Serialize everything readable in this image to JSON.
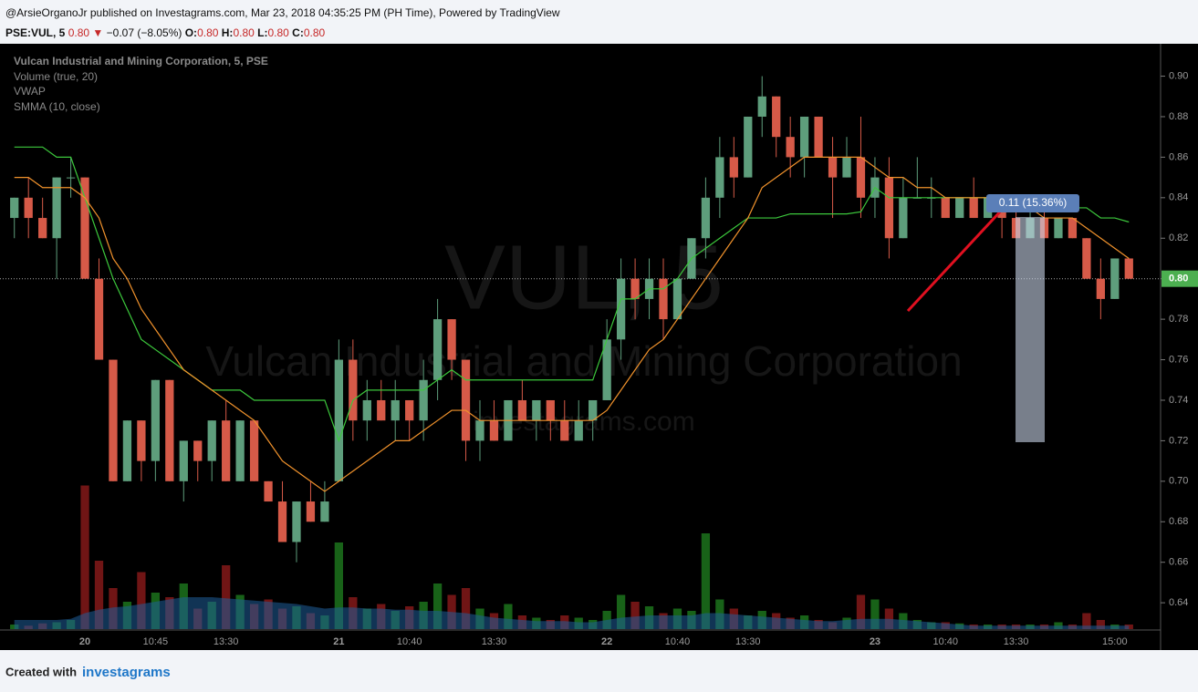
{
  "header": {
    "published": "@ArsieOrganoJr published on Investagrams.com, Mar 23, 2018 04:35:25 PM (PH Time), Powered by TradingView",
    "symbol": "PSE:VUL, 5",
    "last": "0.80",
    "arrow": "▼",
    "change": "−0.07 (−8.05%)",
    "o_label": "O:",
    "o": "0.80",
    "h_label": "H:",
    "h": "0.80",
    "l_label": "L:",
    "l": "0.80",
    "c_label": "C:",
    "c": "0.80"
  },
  "footer": {
    "created": "Created with",
    "brand": "investagrams"
  },
  "chart_data": {
    "type": "candlestick",
    "legend_lines": [
      "Vulcan Industrial and Mining Corporation, 5, PSE",
      "Volume (true, 20)",
      "VWAP",
      "SMMA (10, close)"
    ],
    "watermark": {
      "symbol": "VUL, 5",
      "name": "Vulcan Industrial and Mining Corporation",
      "site": "investagrams.com"
    },
    "measure_label": "0.11 (15.36%)",
    "last_price": {
      "value": 0.8,
      "label": "0.80"
    },
    "categories": [
      null,
      null,
      null,
      null,
      null,
      "20",
      null,
      null,
      null,
      null,
      "10:45",
      null,
      null,
      null,
      null,
      "13:30",
      null,
      null,
      null,
      null,
      null,
      null,
      null,
      "21",
      null,
      null,
      null,
      null,
      "10:40",
      null,
      null,
      null,
      null,
      null,
      "13:30",
      null,
      null,
      null,
      null,
      null,
      null,
      null,
      "22",
      null,
      null,
      null,
      null,
      "10:40",
      null,
      null,
      null,
      null,
      "13:30",
      null,
      null,
      null,
      null,
      null,
      null,
      null,
      null,
      "23",
      null,
      null,
      null,
      null,
      "10:40",
      null,
      null,
      null,
      null,
      "13:30",
      null,
      null,
      null,
      null,
      null,
      null,
      "15:00",
      null
    ],
    "open": [
      0.83,
      0.84,
      0.83,
      0.82,
      0.85,
      0.85,
      0.8,
      0.76,
      0.7,
      0.73,
      0.71,
      0.75,
      0.7,
      0.72,
      0.71,
      0.73,
      0.7,
      0.73,
      0.7,
      0.69,
      0.67,
      0.69,
      0.68,
      0.7,
      0.76,
      0.73,
      0.74,
      0.73,
      0.74,
      0.73,
      0.75,
      0.78,
      0.76,
      0.72,
      0.73,
      0.72,
      0.74,
      0.73,
      0.74,
      0.73,
      0.72,
      0.73,
      0.74,
      0.77,
      0.8,
      0.79,
      0.8,
      0.78,
      0.8,
      0.82,
      0.84,
      0.86,
      0.85,
      0.88,
      0.89,
      0.87,
      0.86,
      0.88,
      0.86,
      0.85,
      0.86,
      0.84,
      0.85,
      0.82,
      0.84,
      0.84,
      0.84,
      0.83,
      0.84,
      0.83,
      0.84,
      0.83,
      0.82,
      0.83,
      0.82,
      0.83,
      0.82,
      0.8,
      0.79,
      0.81
    ],
    "high": [
      0.84,
      0.85,
      0.84,
      0.85,
      0.86,
      0.85,
      0.81,
      0.76,
      0.73,
      0.73,
      0.75,
      0.75,
      0.72,
      0.72,
      0.73,
      0.74,
      0.73,
      0.73,
      0.7,
      0.7,
      0.69,
      0.7,
      0.7,
      0.77,
      0.77,
      0.75,
      0.75,
      0.75,
      0.74,
      0.76,
      0.79,
      0.78,
      0.76,
      0.74,
      0.74,
      0.74,
      0.75,
      0.74,
      0.74,
      0.74,
      0.74,
      0.74,
      0.78,
      0.81,
      0.81,
      0.81,
      0.81,
      0.8,
      0.82,
      0.85,
      0.87,
      0.87,
      0.88,
      0.9,
      0.89,
      0.88,
      0.88,
      0.88,
      0.87,
      0.87,
      0.88,
      0.86,
      0.86,
      0.85,
      0.86,
      0.85,
      0.84,
      0.84,
      0.85,
      0.84,
      0.84,
      0.84,
      0.84,
      0.84,
      0.83,
      0.83,
      0.82,
      0.81,
      0.81,
      0.81
    ],
    "low": [
      0.82,
      0.82,
      0.82,
      0.8,
      0.84,
      0.8,
      0.76,
      0.7,
      0.7,
      0.7,
      0.7,
      0.7,
      0.69,
      0.7,
      0.7,
      0.7,
      0.7,
      0.7,
      0.69,
      0.67,
      0.66,
      0.68,
      0.68,
      0.7,
      0.72,
      0.72,
      0.73,
      0.72,
      0.72,
      0.72,
      0.74,
      0.75,
      0.71,
      0.71,
      0.72,
      0.72,
      0.73,
      0.72,
      0.72,
      0.72,
      0.72,
      0.72,
      0.74,
      0.76,
      0.78,
      0.78,
      0.77,
      0.78,
      0.8,
      0.81,
      0.83,
      0.84,
      0.85,
      0.87,
      0.86,
      0.85,
      0.85,
      0.86,
      0.83,
      0.85,
      0.83,
      0.83,
      0.81,
      0.82,
      0.84,
      0.83,
      0.83,
      0.83,
      0.83,
      0.83,
      0.82,
      0.82,
      0.82,
      0.82,
      0.82,
      0.82,
      0.8,
      0.78,
      0.79,
      0.8
    ],
    "close": [
      0.84,
      0.83,
      0.82,
      0.85,
      0.85,
      0.8,
      0.76,
      0.7,
      0.73,
      0.71,
      0.75,
      0.7,
      0.72,
      0.71,
      0.73,
      0.7,
      0.73,
      0.7,
      0.69,
      0.67,
      0.69,
      0.68,
      0.69,
      0.76,
      0.73,
      0.74,
      0.73,
      0.74,
      0.73,
      0.75,
      0.78,
      0.76,
      0.72,
      0.73,
      0.72,
      0.74,
      0.73,
      0.74,
      0.73,
      0.72,
      0.73,
      0.74,
      0.77,
      0.8,
      0.79,
      0.8,
      0.78,
      0.8,
      0.82,
      0.84,
      0.86,
      0.85,
      0.88,
      0.89,
      0.87,
      0.86,
      0.88,
      0.86,
      0.85,
      0.86,
      0.84,
      0.85,
      0.82,
      0.84,
      0.84,
      0.84,
      0.83,
      0.84,
      0.83,
      0.84,
      0.83,
      0.82,
      0.83,
      0.82,
      0.83,
      0.82,
      0.8,
      0.79,
      0.81,
      0.8
    ],
    "volume": [
      20,
      15,
      25,
      30,
      40,
      630,
      300,
      180,
      120,
      250,
      160,
      140,
      200,
      90,
      120,
      280,
      150,
      110,
      130,
      90,
      100,
      70,
      60,
      380,
      140,
      90,
      110,
      80,
      100,
      120,
      200,
      150,
      180,
      90,
      70,
      110,
      60,
      50,
      40,
      60,
      50,
      40,
      80,
      150,
      120,
      100,
      70,
      90,
      80,
      420,
      130,
      90,
      60,
      80,
      70,
      50,
      60,
      40,
      30,
      50,
      150,
      130,
      90,
      70,
      40,
      30,
      30,
      25,
      20,
      20,
      20,
      20,
      20,
      20,
      30,
      20,
      70,
      40,
      20,
      20
    ],
    "volume_lim": [
      0,
      800
    ],
    "volume_ma": [
      40,
      40,
      40,
      40,
      45,
      70,
      85,
      95,
      100,
      110,
      120,
      130,
      140,
      140,
      140,
      135,
      130,
      125,
      120,
      115,
      110,
      100,
      90,
      95,
      95,
      90,
      90,
      85,
      85,
      80,
      80,
      75,
      70,
      60,
      50,
      45,
      40,
      35,
      35,
      35,
      30,
      30,
      40,
      50,
      55,
      60,
      60,
      60,
      60,
      70,
      70,
      65,
      60,
      55,
      50,
      45,
      40,
      35,
      35,
      40,
      45,
      45,
      45,
      40,
      35,
      30,
      25,
      20,
      15,
      15,
      15,
      15,
      15,
      15,
      15,
      15,
      15,
      15,
      15,
      15
    ],
    "smma": [
      0.85,
      0.85,
      0.845,
      0.845,
      0.845,
      0.84,
      0.83,
      0.81,
      0.8,
      0.785,
      0.775,
      0.765,
      0.755,
      0.75,
      0.745,
      0.74,
      0.735,
      0.73,
      0.72,
      0.71,
      0.705,
      0.7,
      0.695,
      0.7,
      0.705,
      0.71,
      0.715,
      0.72,
      0.72,
      0.725,
      0.73,
      0.735,
      0.735,
      0.73,
      0.73,
      0.73,
      0.73,
      0.73,
      0.73,
      0.73,
      0.73,
      0.73,
      0.735,
      0.745,
      0.755,
      0.765,
      0.77,
      0.78,
      0.79,
      0.8,
      0.81,
      0.82,
      0.83,
      0.845,
      0.85,
      0.855,
      0.86,
      0.86,
      0.86,
      0.86,
      0.86,
      0.855,
      0.85,
      0.85,
      0.845,
      0.845,
      0.84,
      0.84,
      0.84,
      0.84,
      0.84,
      0.835,
      0.835,
      0.83,
      0.83,
      0.83,
      0.825,
      0.82,
      0.815,
      0.81
    ],
    "vwap": [
      0.865,
      0.865,
      0.865,
      0.86,
      0.86,
      0.84,
      0.82,
      0.8,
      0.785,
      0.77,
      0.765,
      0.76,
      0.755,
      0.75,
      0.745,
      0.745,
      0.745,
      0.74,
      0.74,
      0.74,
      0.74,
      0.74,
      0.74,
      0.72,
      0.74,
      0.745,
      0.745,
      0.745,
      0.745,
      0.745,
      0.75,
      0.755,
      0.75,
      0.75,
      0.75,
      0.75,
      0.75,
      0.75,
      0.75,
      0.75,
      0.75,
      0.75,
      0.77,
      0.79,
      0.79,
      0.795,
      0.795,
      0.8,
      0.81,
      0.815,
      0.82,
      0.825,
      0.83,
      0.83,
      0.83,
      0.832,
      0.832,
      0.832,
      0.832,
      0.832,
      0.833,
      0.845,
      0.84,
      0.84,
      0.84,
      0.84,
      0.84,
      0.84,
      0.84,
      0.84,
      0.84,
      0.84,
      0.835,
      0.835,
      0.835,
      0.835,
      0.835,
      0.83,
      0.83,
      0.828
    ],
    "colors": {
      "up": "#5e9e7c",
      "down": "#d65a48",
      "volume_up": "#1e7a1e",
      "volume_down": "#8c1a1a",
      "volume_ma": "#1f5f9a",
      "smma": "#f0922c",
      "vwap": "#3cc83c",
      "last_price": "#4caf50"
    },
    "ylim": [
      0.627,
      0.916
    ],
    "yticks": [
      {
        "value": 0.64,
        "label": "0.64"
      },
      {
        "value": 0.66,
        "label": "0.66"
      },
      {
        "value": 0.68,
        "label": "0.68"
      },
      {
        "value": 0.7,
        "label": "0.70"
      },
      {
        "value": 0.72,
        "label": "0.72"
      },
      {
        "value": 0.74,
        "label": "0.74"
      },
      {
        "value": 0.76,
        "label": "0.76"
      },
      {
        "value": 0.78,
        "label": "0.78"
      },
      {
        "value": 0.8,
        "label": "0.80"
      },
      {
        "value": 0.82,
        "label": "0.82"
      },
      {
        "value": 0.84,
        "label": "0.84"
      },
      {
        "value": 0.86,
        "label": "0.86"
      },
      {
        "value": 0.88,
        "label": "0.88"
      },
      {
        "value": 0.9,
        "label": "0.90"
      }
    ]
  }
}
